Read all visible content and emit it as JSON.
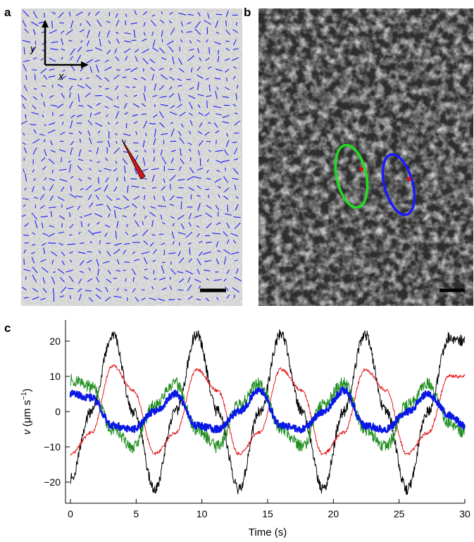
{
  "panels": {
    "a": {
      "letter": "a",
      "axis_x_label": "x",
      "axis_y_label": "y"
    },
    "b": {
      "letter": "b"
    },
    "c": {
      "letter": "c"
    }
  },
  "colors": {
    "arrows": "#1a1aff",
    "big_arrow": "#cc1a1a",
    "series_black": "#000000",
    "series_red": "#e41a1c",
    "series_green": "#1a8c1a",
    "series_blue": "#0a18e6",
    "ellipse_green": "#22dd22",
    "ellipse_blue": "#1a1aff"
  },
  "chart_data": {
    "type": "line",
    "xlabel": "Time (s)",
    "ylabel_main": "v",
    "ylabel_unit": "(μm s",
    "ylabel_sup": "−1",
    "ylabel_close": ")",
    "xlim": [
      0,
      30
    ],
    "ylim": [
      -26,
      26
    ],
    "xticks": [
      0,
      5,
      10,
      15,
      20,
      25,
      30
    ],
    "yticks": [
      -20,
      -10,
      0,
      10,
      20
    ],
    "grid": false,
    "period": 6.4,
    "series": [
      {
        "color": "black",
        "x": [
          0.0,
          1.6,
          3.2,
          4.8,
          6.4,
          8.0,
          9.6,
          11.2,
          12.8,
          14.4,
          16.0,
          17.6,
          19.2,
          20.8,
          22.4,
          24.0,
          25.6,
          27.2,
          28.8,
          30.0
        ],
        "y": [
          -19,
          0,
          22,
          0,
          -22,
          0,
          22,
          0,
          -22,
          0,
          22,
          0,
          -22,
          0,
          22,
          0,
          -22,
          0,
          21,
          20
        ]
      },
      {
        "color": "red",
        "x": [
          0.0,
          1.6,
          3.2,
          4.8,
          6.4,
          8.0,
          9.6,
          11.2,
          12.8,
          14.4,
          16.0,
          17.6,
          19.2,
          20.8,
          22.4,
          24.0,
          25.6,
          27.2,
          28.8,
          30.0
        ],
        "y": [
          -12,
          -6,
          13,
          6,
          -12,
          -6,
          12,
          6,
          -12,
          -6,
          12,
          6,
          -12,
          -6,
          12,
          6,
          -12,
          -6,
          10,
          10
        ]
      },
      {
        "color": "green",
        "x": [
          0.0,
          1.6,
          3.2,
          4.8,
          6.4,
          8.0,
          9.6,
          11.2,
          12.8,
          14.4,
          16.0,
          17.6,
          19.2,
          20.8,
          22.4,
          24.0,
          25.6,
          27.2,
          28.8,
          30.0
        ],
        "y": [
          9,
          7,
          -5,
          -10,
          2,
          8,
          -5,
          -10,
          2,
          8,
          -5,
          -10,
          2,
          8,
          -5,
          -10,
          2,
          8,
          -3,
          -6
        ]
      },
      {
        "color": "blue",
        "x": [
          0.0,
          1.6,
          3.2,
          4.8,
          6.4,
          8.0,
          9.6,
          11.2,
          12.8,
          14.4,
          16.0,
          17.6,
          19.2,
          20.8,
          22.4,
          24.0,
          25.6,
          27.2,
          28.8,
          30.0
        ],
        "y": [
          5,
          4,
          -4,
          -5,
          0,
          5,
          -4,
          -5,
          0,
          6,
          -4,
          -5,
          0,
          6,
          -4,
          -5,
          0,
          5,
          -1,
          -4
        ]
      }
    ]
  }
}
